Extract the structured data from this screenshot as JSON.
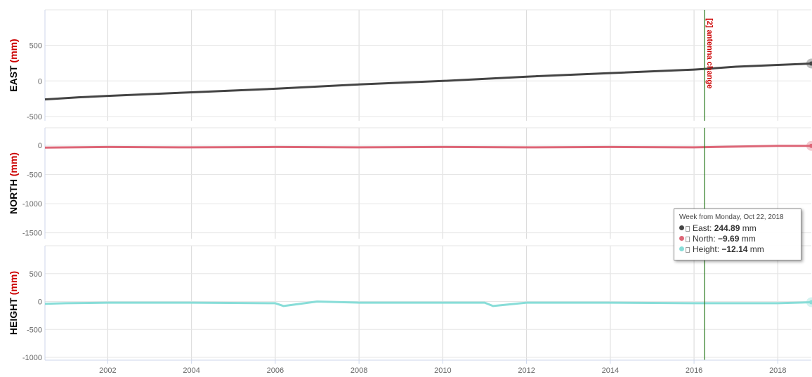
{
  "chart_data": {
    "type": "line",
    "x_label_format": "year",
    "x_ticks": [
      "2002",
      "2004",
      "2006",
      "2008",
      "2010",
      "2012",
      "2014",
      "2016",
      "2018"
    ],
    "xlim": [
      2000.5,
      2018.8
    ],
    "grid": true,
    "panels": [
      {
        "name": "east",
        "ylabel_main": "EAST",
        "ylabel_unit": "(mm)",
        "ylim": [
          -560,
          1000
        ],
        "y_ticks": [
          500,
          0,
          -500
        ],
        "series": {
          "name": "East",
          "color": "#444444",
          "x": [
            2000.5,
            2001.3,
            2002,
            2004,
            2006,
            2008,
            2010,
            2012,
            2014,
            2016,
            2016.4,
            2017,
            2018,
            2018.8
          ],
          "y": [
            -260,
            -230,
            -210,
            -160,
            -110,
            -50,
            0,
            60,
            110,
            160,
            175,
            200,
            225,
            245
          ]
        }
      },
      {
        "name": "north",
        "ylabel_main": "NORTH",
        "ylabel_unit": "(mm)",
        "ylim": [
          -1600,
          300
        ],
        "y_ticks": [
          0,
          -500,
          -1000,
          -1500
        ],
        "series": {
          "name": "North",
          "color": "#dd6677",
          "x": [
            2000.5,
            2002,
            2004,
            2006,
            2008,
            2010,
            2012,
            2014,
            2016,
            2018,
            2018.8
          ],
          "y": [
            -40,
            -30,
            -35,
            -30,
            -35,
            -30,
            -35,
            -30,
            -35,
            -10,
            -10
          ]
        }
      },
      {
        "name": "height",
        "ylabel_main": "HEIGHT",
        "ylabel_unit": "(mm)",
        "ylim": [
          -1050,
          1000
        ],
        "y_ticks": [
          500,
          0,
          -500,
          -1000
        ],
        "series": {
          "name": "Height",
          "color": "#88ddd8",
          "x": [
            2000.5,
            2001,
            2002,
            2004,
            2006,
            2006.2,
            2007,
            2008,
            2010,
            2011,
            2011.2,
            2012,
            2014,
            2016,
            2018,
            2018.8
          ],
          "y": [
            -40,
            -30,
            -20,
            -20,
            -30,
            -80,
            0,
            -20,
            -20,
            -20,
            -80,
            -20,
            -20,
            -30,
            -30,
            -12
          ]
        }
      }
    ],
    "event": {
      "x": 2016.25,
      "label": "[2] antenna change",
      "color": "#2a7a1e"
    },
    "tooltip": {
      "header": "Week from Monday, Oct 22, 2018",
      "rows": [
        {
          "label": "East:",
          "value": "244.89",
          "unit": "mm",
          "color": "#444444"
        },
        {
          "label": "North:",
          "value": "−9.69",
          "unit": "mm",
          "color": "#dd6677"
        },
        {
          "label": "Height:",
          "value": "−12.14",
          "unit": "mm",
          "color": "#88ddd8"
        }
      ]
    }
  }
}
